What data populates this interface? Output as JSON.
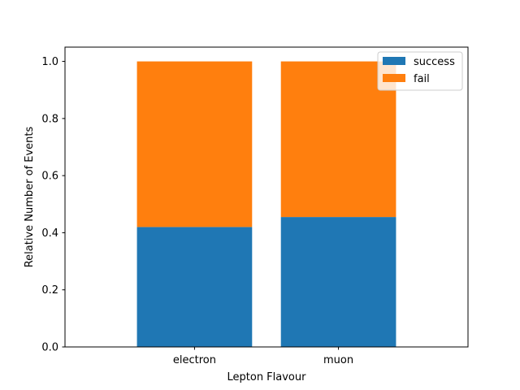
{
  "chart_data": {
    "type": "bar",
    "stacked": true,
    "categories": [
      "electron",
      "muon"
    ],
    "series": [
      {
        "name": "success",
        "values": [
          0.42,
          0.455
        ],
        "color": "#1f77b4"
      },
      {
        "name": "fail",
        "values": [
          0.58,
          0.545
        ],
        "color": "#ff7f0e"
      }
    ],
    "xlabel": "Lepton Flavour",
    "ylabel": "Relative Number of Events",
    "ylim": [
      0,
      1.05
    ],
    "yticks": [
      0.0,
      0.2,
      0.4,
      0.6,
      0.8,
      1.0
    ],
    "ytick_labels": [
      "0.0",
      "0.2",
      "0.4",
      "0.6",
      "0.8",
      "1.0"
    ],
    "legend_position": "top-right",
    "grid": false
  }
}
